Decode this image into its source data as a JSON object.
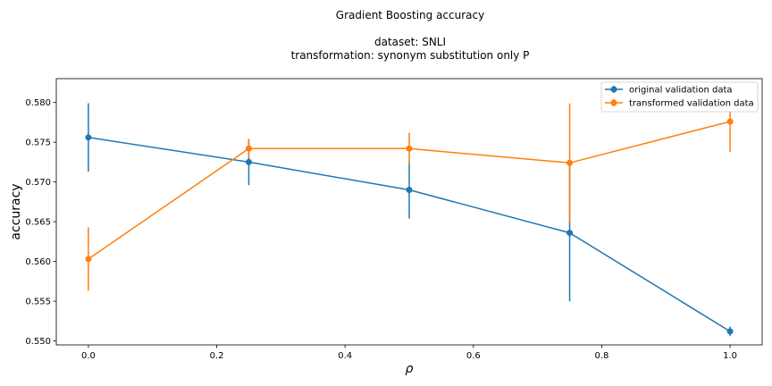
{
  "chart_data": {
    "type": "line",
    "title_lines": [
      "Gradient Boosting accuracy",
      "",
      "dataset: SNLI",
      "transformation: synonym substitution only P"
    ],
    "xlabel": "ρ",
    "ylabel": "accuracy",
    "xlim": [
      -0.05,
      1.05
    ],
    "ylim": [
      0.5495,
      0.583
    ],
    "x_ticks": [
      0.0,
      0.2,
      0.4,
      0.6,
      0.8,
      1.0
    ],
    "x_tick_labels": [
      "0.0",
      "0.2",
      "0.4",
      "0.6",
      "0.8",
      "1.0"
    ],
    "y_ticks": [
      0.55,
      0.555,
      0.56,
      0.565,
      0.57,
      0.575,
      0.58
    ],
    "y_tick_labels": [
      "0.550",
      "0.555",
      "0.560",
      "0.565",
      "0.570",
      "0.575",
      "0.580"
    ],
    "grid": false,
    "legend_position": "top-right",
    "x": [
      0.0,
      0.25,
      0.5,
      0.75,
      1.0
    ],
    "series": [
      {
        "name": "original validation data",
        "color": "#1f77b4",
        "values": [
          0.5756,
          0.5725,
          0.569,
          0.5636,
          0.5512
        ],
        "errors": [
          0.0043,
          0.0029,
          0.0036,
          0.0086,
          0.0006
        ]
      },
      {
        "name": "transformed validation data",
        "color": "#ff7f0e",
        "values": [
          0.5603,
          0.5742,
          0.5742,
          0.5724,
          0.5776
        ],
        "errors": [
          0.004,
          0.0012,
          0.002,
          0.0075,
          0.0038
        ]
      }
    ]
  }
}
